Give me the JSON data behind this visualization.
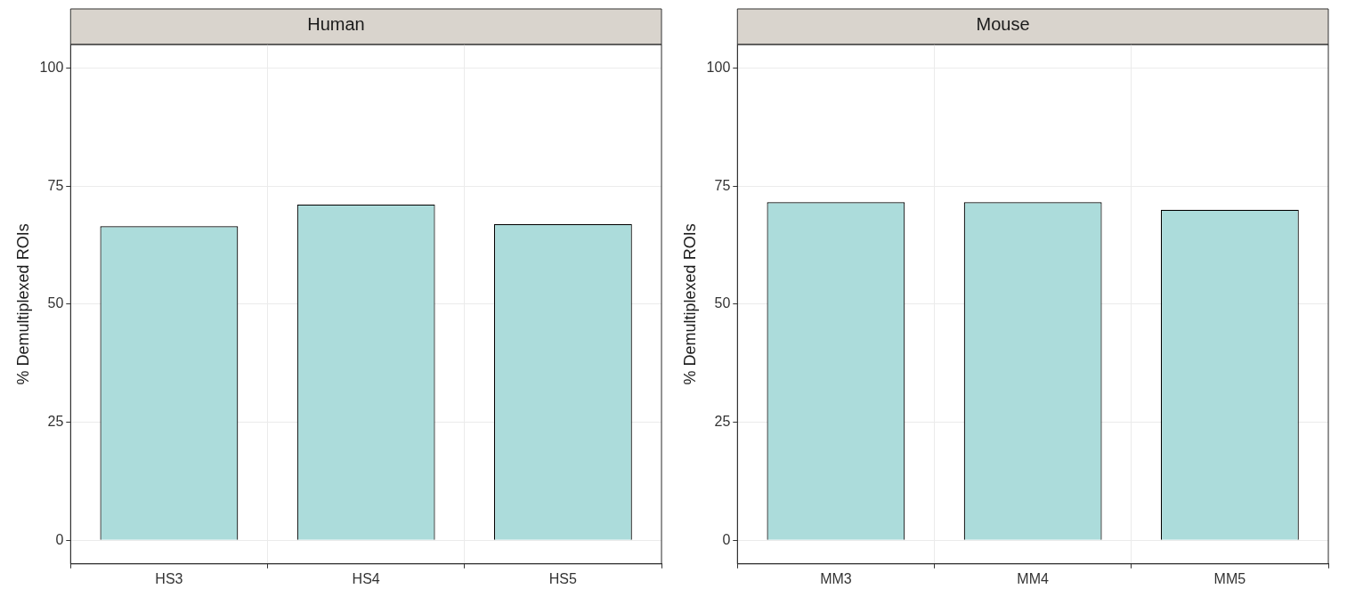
{
  "chart_data": [
    {
      "type": "bar",
      "title": "Human",
      "ylabel": "% Demultiplexed ROIs",
      "categories": [
        "HS3",
        "HS4",
        "HS5"
      ],
      "values": [
        66.5,
        71.1,
        67.0
      ],
      "color": "#acdcdb",
      "ylim": [
        -5,
        105
      ],
      "yticks": [
        0,
        25,
        50,
        75,
        100
      ],
      "grid": true
    },
    {
      "type": "bar",
      "title": "Mouse",
      "ylabel": "% Demultiplexed ROIs",
      "categories": [
        "MM3",
        "MM4",
        "MM5"
      ],
      "values": [
        71.6,
        71.6,
        70.0
      ],
      "color": "#acdcdb",
      "ylim": [
        -5,
        105
      ],
      "yticks": [
        0,
        25,
        50,
        75,
        100
      ],
      "grid": true
    }
  ]
}
